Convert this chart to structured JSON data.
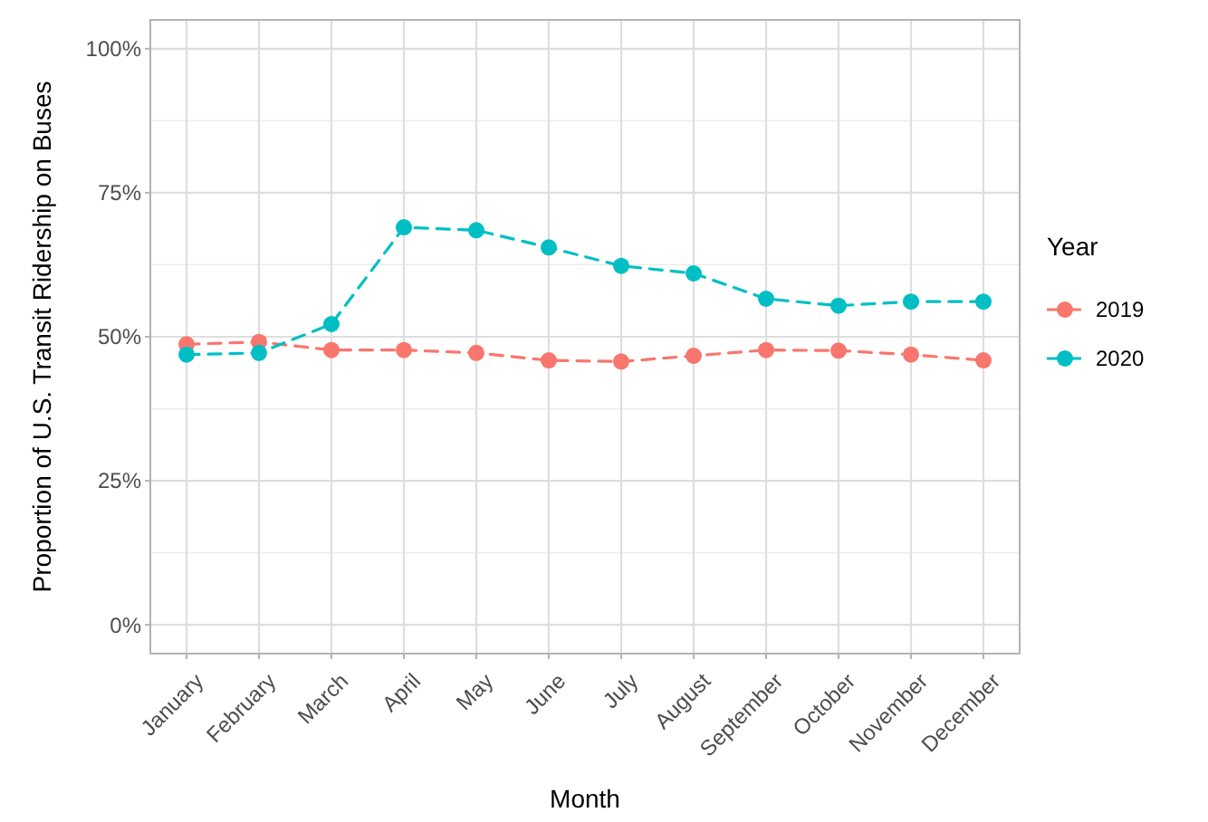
{
  "chart_data": {
    "type": "line",
    "xlabel": "Month",
    "ylabel": "Proportion of U.S. Transit Ridership on Buses",
    "legend_title": "Year",
    "categories": [
      "January",
      "February",
      "March",
      "April",
      "May",
      "June",
      "July",
      "August",
      "September",
      "October",
      "November",
      "December"
    ],
    "series": [
      {
        "name": "2019",
        "color": "#f8766d",
        "values": [
          48.7,
          49.1,
          47.7,
          47.7,
          47.2,
          45.9,
          45.7,
          46.7,
          47.7,
          47.6,
          46.9,
          45.9
        ]
      },
      {
        "name": "2020",
        "color": "#00bfc4",
        "values": [
          46.9,
          47.2,
          52.2,
          69.0,
          68.5,
          65.5,
          62.3,
          61.0,
          56.6,
          55.4,
          56.1,
          56.1
        ]
      }
    ],
    "ylim": [
      -5,
      105
    ],
    "yticks": [
      {
        "value": 0,
        "label": "0%"
      },
      {
        "value": 25,
        "label": "25%"
      },
      {
        "value": 50,
        "label": "50%"
      },
      {
        "value": 75,
        "label": "75%"
      },
      {
        "value": 100,
        "label": "100%"
      }
    ],
    "grid": true,
    "legend": "right",
    "marker": "circle",
    "line_style": "dashed"
  }
}
